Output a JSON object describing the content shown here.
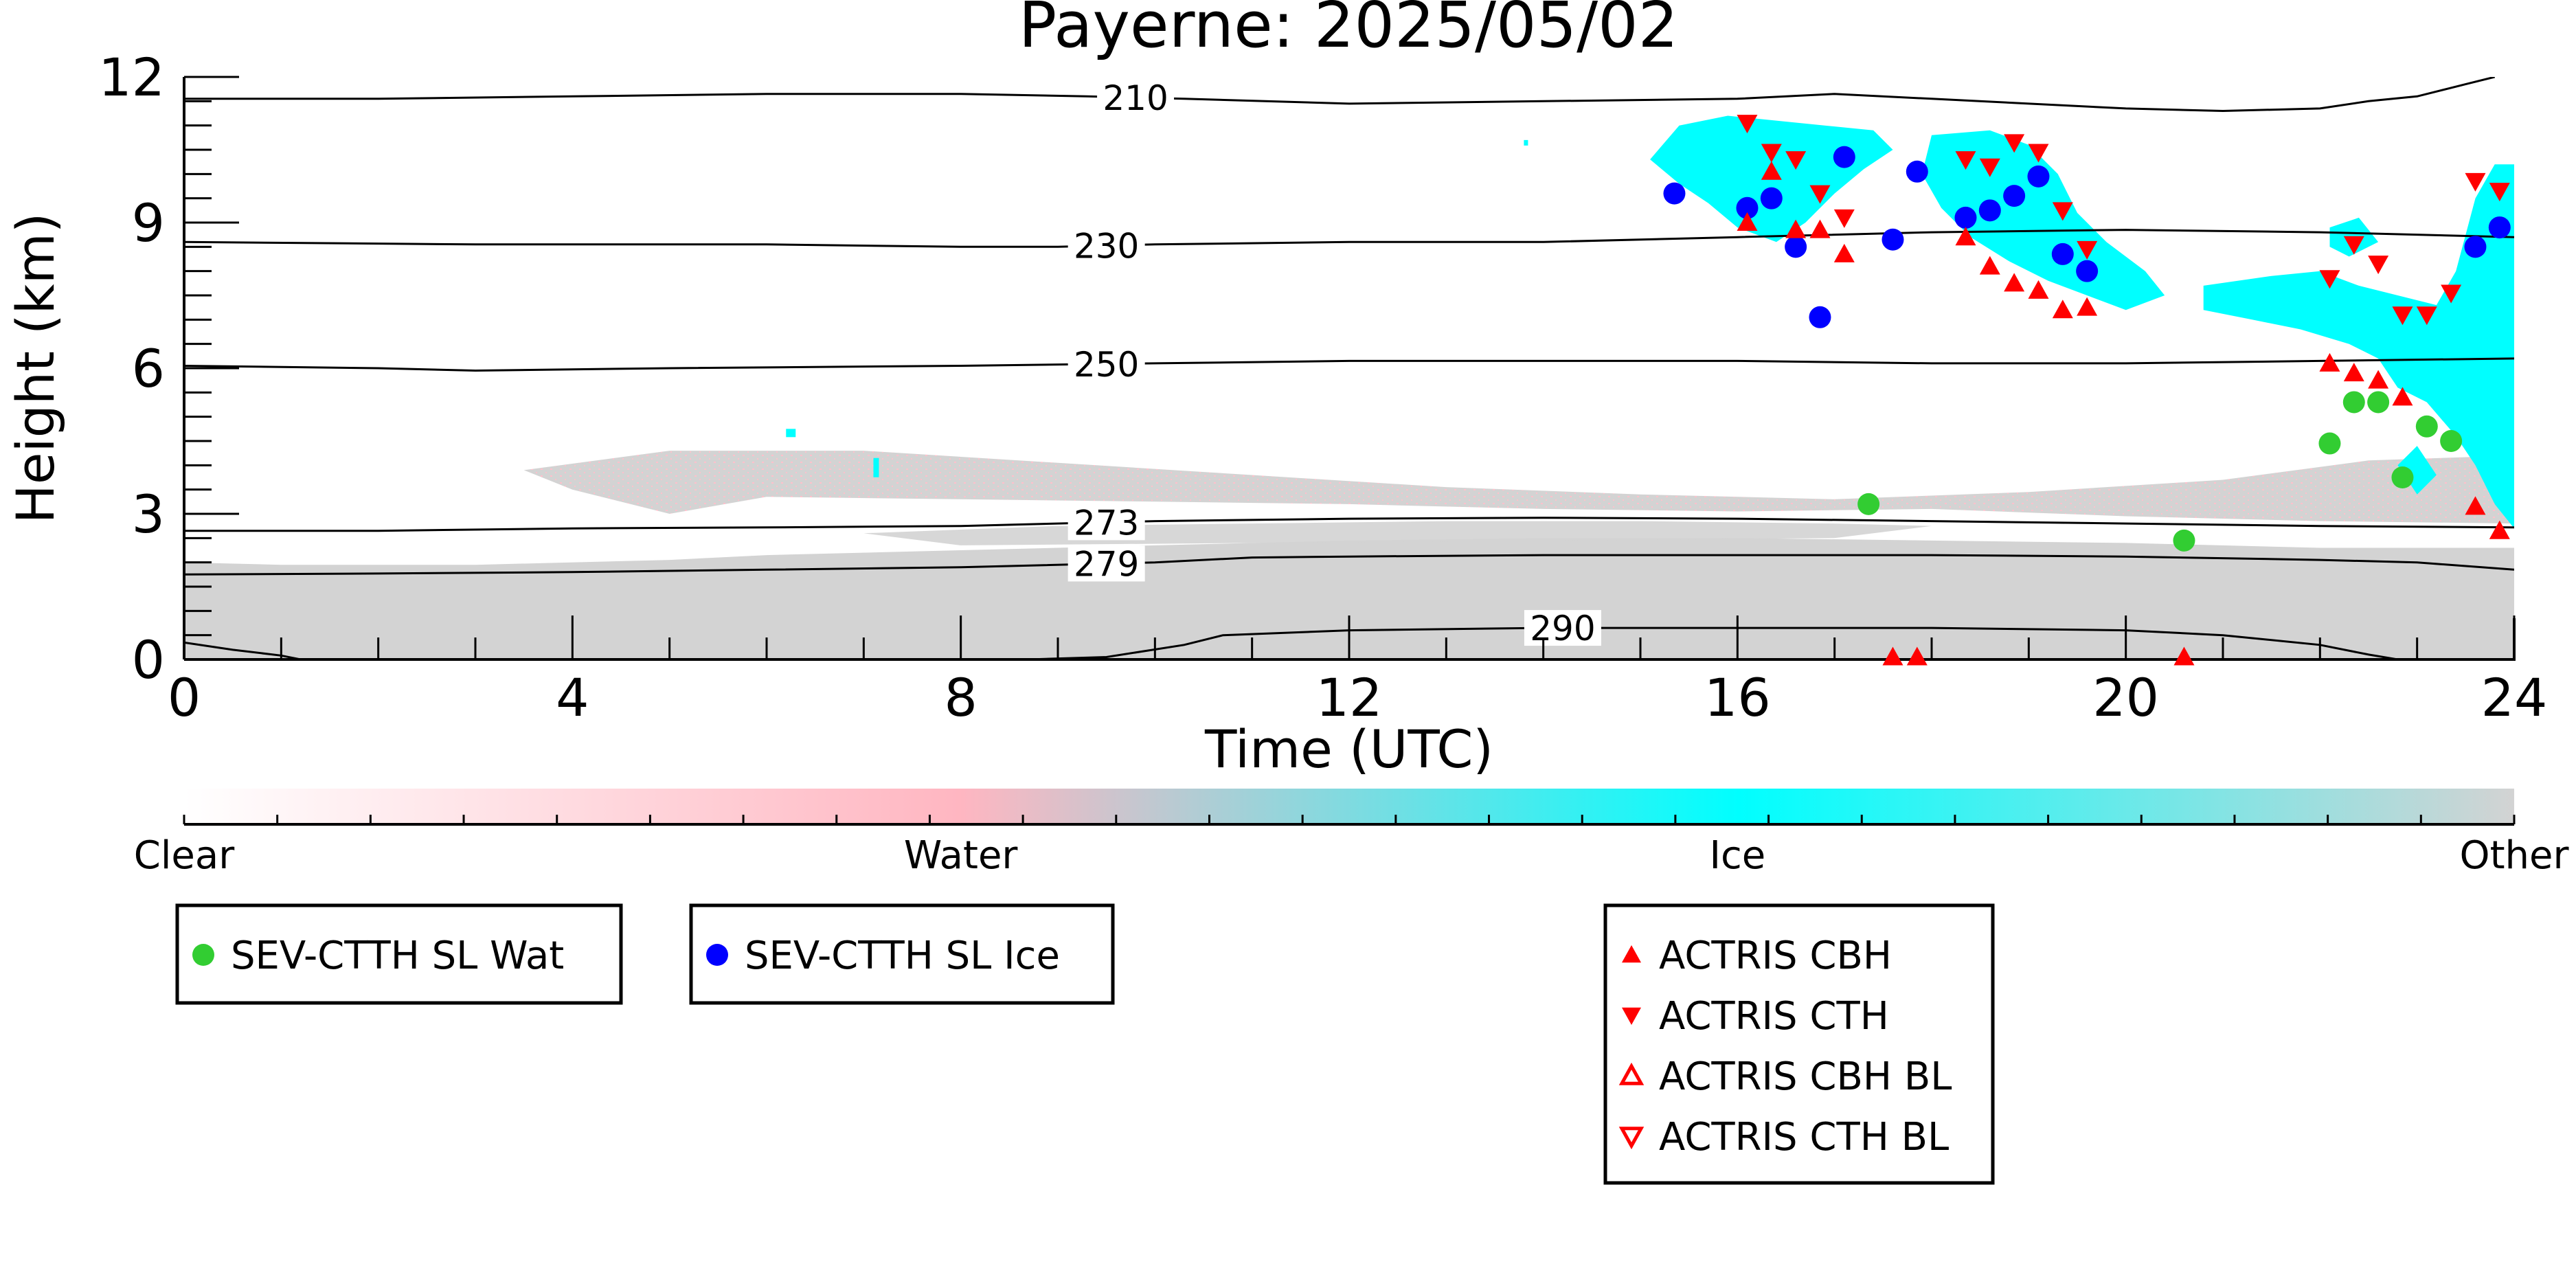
{
  "chart_data": {
    "type": "scatter",
    "title": "Payerne: 2025/05/02",
    "xlabel": "Time (UTC)",
    "ylabel": "Height (km)",
    "xlim": [
      0,
      24
    ],
    "ylim": [
      0,
      12
    ],
    "xticks": [
      "0",
      "4",
      "8",
      "12",
      "16",
      "20",
      "24"
    ],
    "yticks": [
      "0",
      "3",
      "6",
      "9",
      "12"
    ],
    "background": "cloud phase curtain (clear / water / ice / other)",
    "colorbar": {
      "labels": [
        "Clear",
        "Water",
        "Ice",
        "Other"
      ],
      "colors": [
        "#ffffff",
        "#ffb6c1",
        "#00ffff",
        "#d3d3d3"
      ]
    },
    "isotherms": [
      {
        "label": "210",
        "label_x": 9.8,
        "points": [
          [
            0,
            11.55
          ],
          [
            2,
            11.55
          ],
          [
            4,
            11.6
          ],
          [
            6,
            11.65
          ],
          [
            8,
            11.65
          ],
          [
            9.3,
            11.6
          ],
          [
            10.3,
            11.55
          ],
          [
            12,
            11.45
          ],
          [
            14,
            11.5
          ],
          [
            16,
            11.55
          ],
          [
            17,
            11.65
          ],
          [
            18,
            11.55
          ],
          [
            20,
            11.35
          ],
          [
            21,
            11.3
          ],
          [
            22,
            11.35
          ],
          [
            22.5,
            11.5
          ],
          [
            23,
            11.6
          ],
          [
            23.5,
            11.85
          ],
          [
            23.8,
            12.0
          ]
        ]
      },
      {
        "label": "230",
        "label_x": 9.5,
        "points": [
          [
            0,
            8.6
          ],
          [
            3,
            8.55
          ],
          [
            6,
            8.55
          ],
          [
            8,
            8.5
          ],
          [
            9,
            8.5
          ],
          [
            10,
            8.55
          ],
          [
            12,
            8.6
          ],
          [
            14,
            8.6
          ],
          [
            16,
            8.7
          ],
          [
            18,
            8.8
          ],
          [
            20,
            8.85
          ],
          [
            22,
            8.8
          ],
          [
            24,
            8.7
          ]
        ]
      },
      {
        "label": "250",
        "label_x": 9.5,
        "points": [
          [
            0,
            6.05
          ],
          [
            2,
            6.0
          ],
          [
            3,
            5.95
          ],
          [
            5,
            6.0
          ],
          [
            8,
            6.05
          ],
          [
            10,
            6.1
          ],
          [
            12,
            6.15
          ],
          [
            14,
            6.15
          ],
          [
            16,
            6.15
          ],
          [
            18,
            6.1
          ],
          [
            20,
            6.1
          ],
          [
            22,
            6.15
          ],
          [
            24,
            6.2
          ]
        ]
      },
      {
        "label": "273",
        "label_x": 9.5,
        "points": [
          [
            0,
            2.65
          ],
          [
            2,
            2.65
          ],
          [
            4,
            2.7
          ],
          [
            6,
            2.72
          ],
          [
            8,
            2.75
          ],
          [
            10,
            2.85
          ],
          [
            12,
            2.9
          ],
          [
            14,
            2.92
          ],
          [
            16,
            2.9
          ],
          [
            18,
            2.85
          ],
          [
            20,
            2.8
          ],
          [
            22,
            2.75
          ],
          [
            24,
            2.72
          ]
        ]
      },
      {
        "label": "279",
        "label_x": 9.5,
        "points": [
          [
            0,
            1.75
          ],
          [
            2,
            1.77
          ],
          [
            4,
            1.8
          ],
          [
            6,
            1.85
          ],
          [
            8,
            1.9
          ],
          [
            10,
            2.0
          ],
          [
            11,
            2.1
          ],
          [
            12,
            2.12
          ],
          [
            14,
            2.15
          ],
          [
            16,
            2.15
          ],
          [
            18,
            2.15
          ],
          [
            20,
            2.12
          ],
          [
            22,
            2.05
          ],
          [
            23,
            2.0
          ],
          [
            24,
            1.85
          ]
        ]
      },
      {
        "label": "290",
        "label_x": 14.2,
        "points": [
          [
            0,
            0.35
          ],
          [
            0.5,
            0.2
          ],
          [
            1,
            0.08
          ],
          [
            1.2,
            0
          ],
          [
            8.7,
            0
          ],
          [
            9.5,
            0.05
          ],
          [
            10.3,
            0.3
          ],
          [
            10.7,
            0.5
          ],
          [
            12,
            0.6
          ],
          [
            14,
            0.65
          ],
          [
            16,
            0.65
          ],
          [
            18,
            0.65
          ],
          [
            20,
            0.6
          ],
          [
            21,
            0.5
          ],
          [
            22,
            0.3
          ],
          [
            22.5,
            0.1
          ],
          [
            22.8,
            0.0
          ],
          [
            24,
            0.0
          ]
        ]
      }
    ],
    "series": [
      {
        "name": "SEV-CTTH SL Wat",
        "color": "#32cd32",
        "marker": "circle",
        "x": [
          17.35,
          20.6,
          22.1,
          22.35,
          22.6,
          22.85,
          23.1,
          23.35
        ],
        "y": [
          3.2,
          2.45,
          4.45,
          5.3,
          5.3,
          3.75,
          4.8,
          4.5
        ]
      },
      {
        "name": "SEV-CTTH SL Ice",
        "color": "#0000ff",
        "marker": "circle",
        "x": [
          15.35,
          16.1,
          16.35,
          16.6,
          16.85,
          17.1,
          17.6,
          17.85,
          18.35,
          18.6,
          18.85,
          19.1,
          19.35,
          19.6,
          23.6,
          23.85
        ],
        "y": [
          9.6,
          9.3,
          9.5,
          8.5,
          7.05,
          10.35,
          8.65,
          10.05,
          9.1,
          9.25,
          9.55,
          9.95,
          8.35,
          8.0,
          8.5,
          8.9
        ]
      },
      {
        "name": "ACTRIS CBH",
        "color": "#ff0000",
        "marker": "triangle-up",
        "x": [
          16.1,
          16.35,
          16.6,
          16.85,
          17.1,
          17.6,
          17.85,
          18.35,
          18.6,
          18.85,
          19.1,
          19.35,
          19.6,
          22.1,
          22.35,
          22.6,
          22.85,
          23.6,
          23.85,
          20.6
        ],
        "y": [
          9.0,
          10.05,
          8.85,
          8.85,
          8.35,
          0.05,
          0.05,
          8.7,
          8.1,
          7.75,
          7.6,
          7.2,
          7.25,
          6.1,
          5.9,
          5.75,
          5.4,
          3.15,
          2.65,
          0.05
        ]
      },
      {
        "name": "ACTRIS CTH",
        "color": "#ff0000",
        "marker": "triangle-down",
        "x": [
          16.1,
          16.35,
          16.6,
          16.85,
          17.1,
          18.35,
          18.6,
          18.85,
          19.1,
          19.35,
          19.6,
          22.1,
          22.35,
          22.6,
          22.85,
          23.1,
          23.35,
          23.6,
          23.85
        ],
        "y": [
          11.05,
          10.45,
          10.3,
          9.6,
          9.1,
          10.3,
          10.15,
          10.65,
          10.45,
          9.25,
          8.45,
          7.85,
          8.55,
          8.15,
          7.1,
          7.1,
          7.55,
          9.85,
          9.65
        ]
      },
      {
        "name": "ACTRIS CBH BL",
        "color": "#ff0000",
        "marker": "triangle-up-open",
        "x": [],
        "y": []
      },
      {
        "name": "ACTRIS CTH BL",
        "color": "#ff0000",
        "marker": "triangle-down-open",
        "x": [],
        "y": []
      }
    ],
    "legends": [
      {
        "entries": [
          "SEV-CTTH SL Wat"
        ]
      },
      {
        "entries": [
          "SEV-CTTH SL Ice"
        ]
      },
      {
        "entries": [
          "ACTRIS CBH",
          "ACTRIS CTH",
          "ACTRIS CBH BL",
          "ACTRIS CTH BL"
        ]
      }
    ]
  }
}
